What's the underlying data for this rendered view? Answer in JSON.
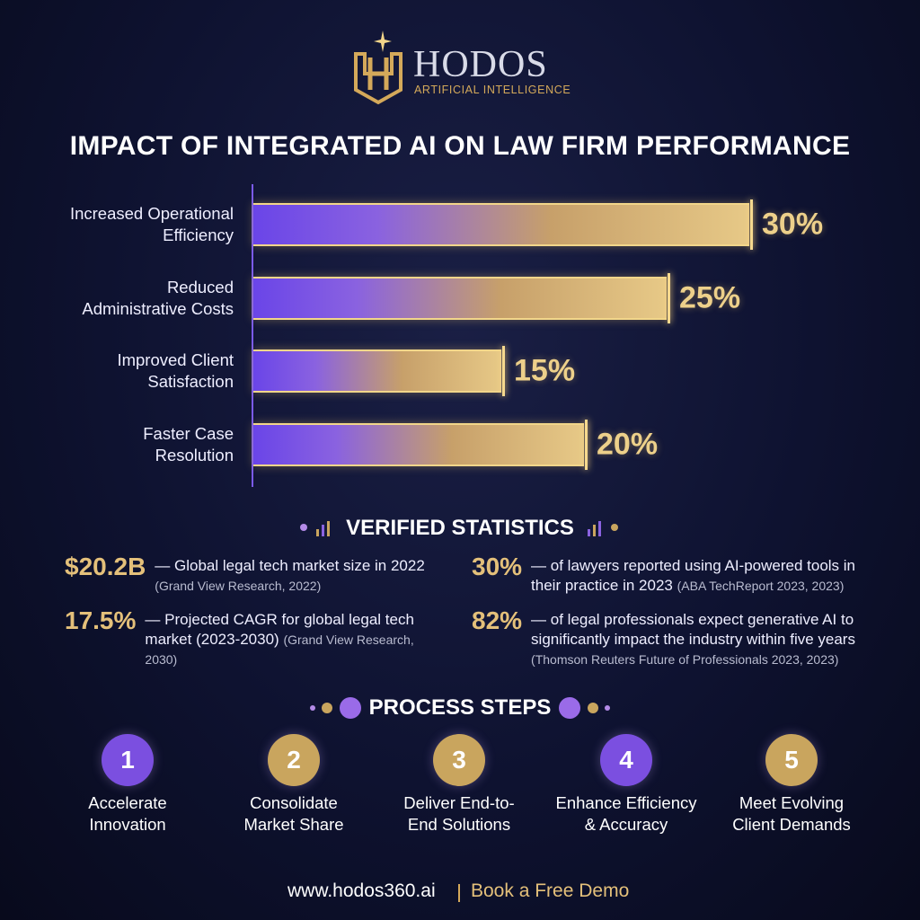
{
  "header": {
    "brand": "HODOS",
    "tagline": "ARTIFICIAL INTELLIGENCE"
  },
  "chart_data": {
    "type": "bar",
    "orientation": "horizontal",
    "title": "IMPACT OF INTEGRATED AI ON LAW FIRM PERFORMANCE",
    "categories": [
      "Increased Operational\nEfficiency",
      "Reduced\nAdministrative Costs",
      "Improved Client\nSatisfaction",
      "Faster Case\nResolution"
    ],
    "values": [
      30,
      25,
      15,
      20
    ],
    "value_labels": [
      "30%",
      "25%",
      "15%",
      "20%"
    ]
  },
  "statistics": {
    "title": "VERIFIED STATISTICS",
    "items": [
      {
        "value": "$20.2B",
        "text": "— Global legal tech market size in 2022",
        "source": "(Grand View Research, 2022)"
      },
      {
        "value": "30%",
        "text": "— of lawyers reported using AI-powered tools in their practice in 2023",
        "source": "(ABA TechReport 2023, 2023)"
      },
      {
        "value": "17.5%",
        "text": "— Projected CAGR for global legal tech market (2023-2030)",
        "source": "(Grand View Research, 2030)"
      },
      {
        "value": "82%",
        "text": "— of legal professionals expect generative AI to significantly impact the industry within five years",
        "source": "(Thomson Reuters Future of Professionals 2023, 2023)"
      }
    ]
  },
  "process": {
    "title": "PROCESS STEPS",
    "steps": [
      {
        "number": "1",
        "label": "Accelerate\nInnovation",
        "color": "#7b4fe0"
      },
      {
        "number": "2",
        "label": "Consolidate\nMarket Share",
        "color": "#c9a55e"
      },
      {
        "number": "3",
        "label": "Deliver End-to-\nEnd Solutions",
        "color": "#c9a55e"
      },
      {
        "number": "4",
        "label": "Enhance Efficiency\n& Accuracy",
        "color": "#7b4fe0"
      },
      {
        "number": "5",
        "label": "Meet Evolving\nClient Demands",
        "color": "#c9a55e"
      }
    ]
  },
  "footer": {
    "website": "www.hodos360.ai",
    "cta": "Book a Free Demo"
  }
}
